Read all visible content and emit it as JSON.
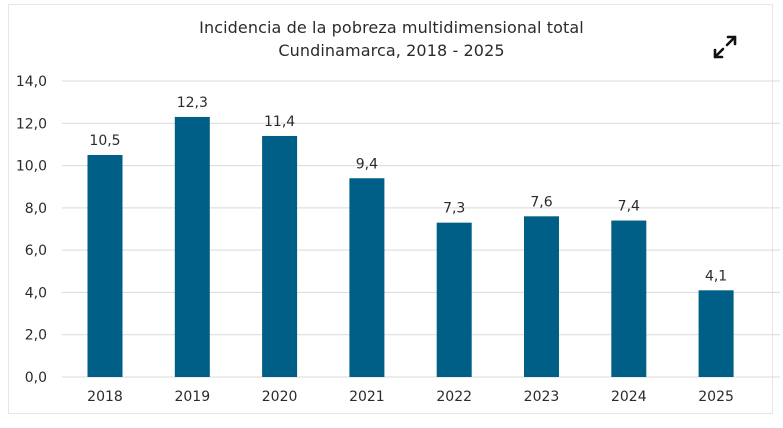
{
  "title_line1": "Incidencia de la pobreza multidimensional total",
  "title_line2": "Cundinamarca, 2018 - 2025",
  "expand_icon": "expand-icon",
  "colors": {
    "bar": "#005f86",
    "grid": "#d9d9d9",
    "text": "#2b2b2b"
  },
  "chart_data": {
    "type": "bar",
    "title": "Incidencia de la pobreza multidimensional total Cundinamarca, 2018 - 2025",
    "xlabel": "",
    "ylabel": "",
    "categories": [
      "2018",
      "2019",
      "2020",
      "2021",
      "2022",
      "2023",
      "2024",
      "2025"
    ],
    "values": [
      10.5,
      12.3,
      11.4,
      9.4,
      7.3,
      7.6,
      7.4,
      4.1
    ],
    "value_labels": [
      "10,5",
      "12,3",
      "11,4",
      "9,4",
      "7,3",
      "7,6",
      "7,4",
      "4,1"
    ],
    "ylim": [
      0,
      14
    ],
    "yticks": [
      0,
      2,
      4,
      6,
      8,
      10,
      12,
      14
    ],
    "ytick_labels": [
      "0,0",
      "2,0",
      "4,0",
      "6,0",
      "8,0",
      "10,0",
      "12,0",
      "14,0"
    ],
    "grid": true
  }
}
